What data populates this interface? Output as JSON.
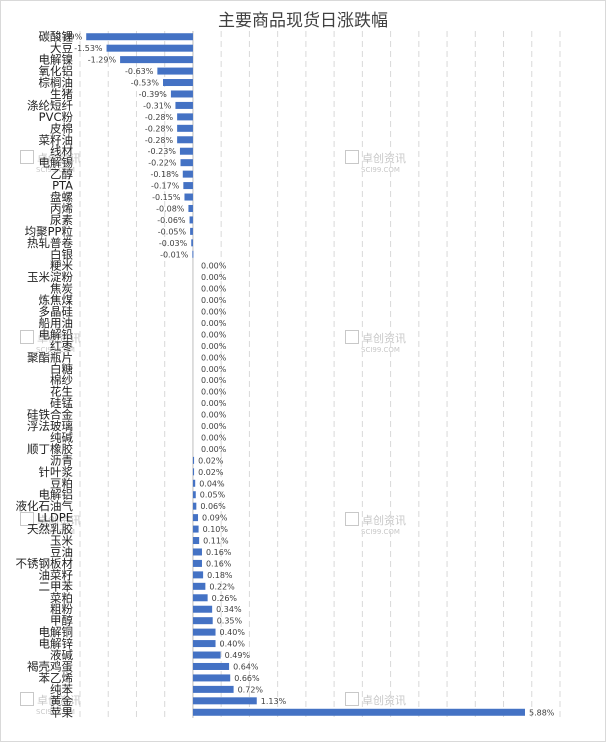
{
  "chart_data": {
    "type": "bar",
    "orientation": "horizontal",
    "title": "主要商品现货日涨跌幅",
    "xlabel": "",
    "ylabel": "",
    "bar_color": "#4472C4",
    "grid": true,
    "grid_style": "dashed vertical",
    "xlim": [
      -2,
      6.5
    ],
    "legend": "none",
    "categories": [
      "碳酸锂",
      "大豆",
      "电解镍",
      "氧化铝",
      "棕榈油",
      "生猪",
      "涤纶短纤",
      "PVC粉",
      "皮棉",
      "菜籽油",
      "线材",
      "电解锡",
      "乙醇",
      "PTA",
      "盘螺",
      "丙烯",
      "尿素",
      "均聚PP粒",
      "热轧普卷",
      "白银",
      "粳米",
      "玉米淀粉",
      "焦炭",
      "炼焦煤",
      "多晶硅",
      "船用油",
      "电解铅",
      "红枣",
      "聚酯瓶片",
      "白糖",
      "棉纱",
      "花生",
      "硅锰",
      "硅铁合金",
      "浮法玻璃",
      "纯碱",
      "顺丁橡胶",
      "沥青",
      "针叶浆",
      "豆粕",
      "电解铝",
      "液化石油气",
      "LLDPE",
      "天然乳胶",
      "玉米",
      "豆油",
      "不锈钢板材",
      "油菜籽",
      "二甲苯",
      "菜粕",
      "粗粉",
      "甲醇",
      "电解铜",
      "电解锌",
      "液碱",
      "褐壳鸡蛋",
      "苯乙烯",
      "纯苯",
      "黄金",
      "苹果"
    ],
    "values": [
      -1.89,
      -1.53,
      -1.29,
      -0.63,
      -0.53,
      -0.39,
      -0.31,
      -0.28,
      -0.28,
      -0.28,
      -0.23,
      -0.22,
      -0.18,
      -0.17,
      -0.15,
      -0.08,
      -0.06,
      -0.05,
      -0.03,
      -0.01,
      0.0,
      0.0,
      0.0,
      0.0,
      0.0,
      0.0,
      0.0,
      0.0,
      0.0,
      0.0,
      0.0,
      0.0,
      0.0,
      0.0,
      0.0,
      0.0,
      0.0,
      0.02,
      0.02,
      0.04,
      0.05,
      0.06,
      0.09,
      0.1,
      0.11,
      0.16,
      0.16,
      0.18,
      0.22,
      0.26,
      0.34,
      0.35,
      0.4,
      0.4,
      0.49,
      0.64,
      0.66,
      0.72,
      1.13,
      5.88
    ],
    "data_labels": [
      "-1.89%",
      "-1.53%",
      "-1.29%",
      "-0.63%",
      "-0.53%",
      "-0.39%",
      "-0.31%",
      "-0.28%",
      "-0.28%",
      "-0.28%",
      "-0.23%",
      "-0.22%",
      "-0.18%",
      "-0.17%",
      "-0.15%",
      "-0.08%",
      "-0.06%",
      "-0.05%",
      "-0.03%",
      "-0.01%",
      "0.00%",
      "0.00%",
      "0.00%",
      "0.00%",
      "0.00%",
      "0.00%",
      "0.00%",
      "0.00%",
      "0.00%",
      "0.00%",
      "0.00%",
      "0.00%",
      "0.00%",
      "0.00%",
      "0.00%",
      "0.00%",
      "0.00%",
      "0.02%",
      "0.02%",
      "0.04%",
      "0.05%",
      "0.06%",
      "0.09%",
      "0.10%",
      "0.11%",
      "0.16%",
      "0.16%",
      "0.18%",
      "0.22%",
      "0.26%",
      "0.34%",
      "0.35%",
      "0.40%",
      "0.40%",
      "0.49%",
      "0.64%",
      "0.66%",
      "0.72%",
      "1.13%",
      "5.88%"
    ]
  },
  "watermark": {
    "name": "卓创资讯",
    "site": "SCI99.COM"
  }
}
